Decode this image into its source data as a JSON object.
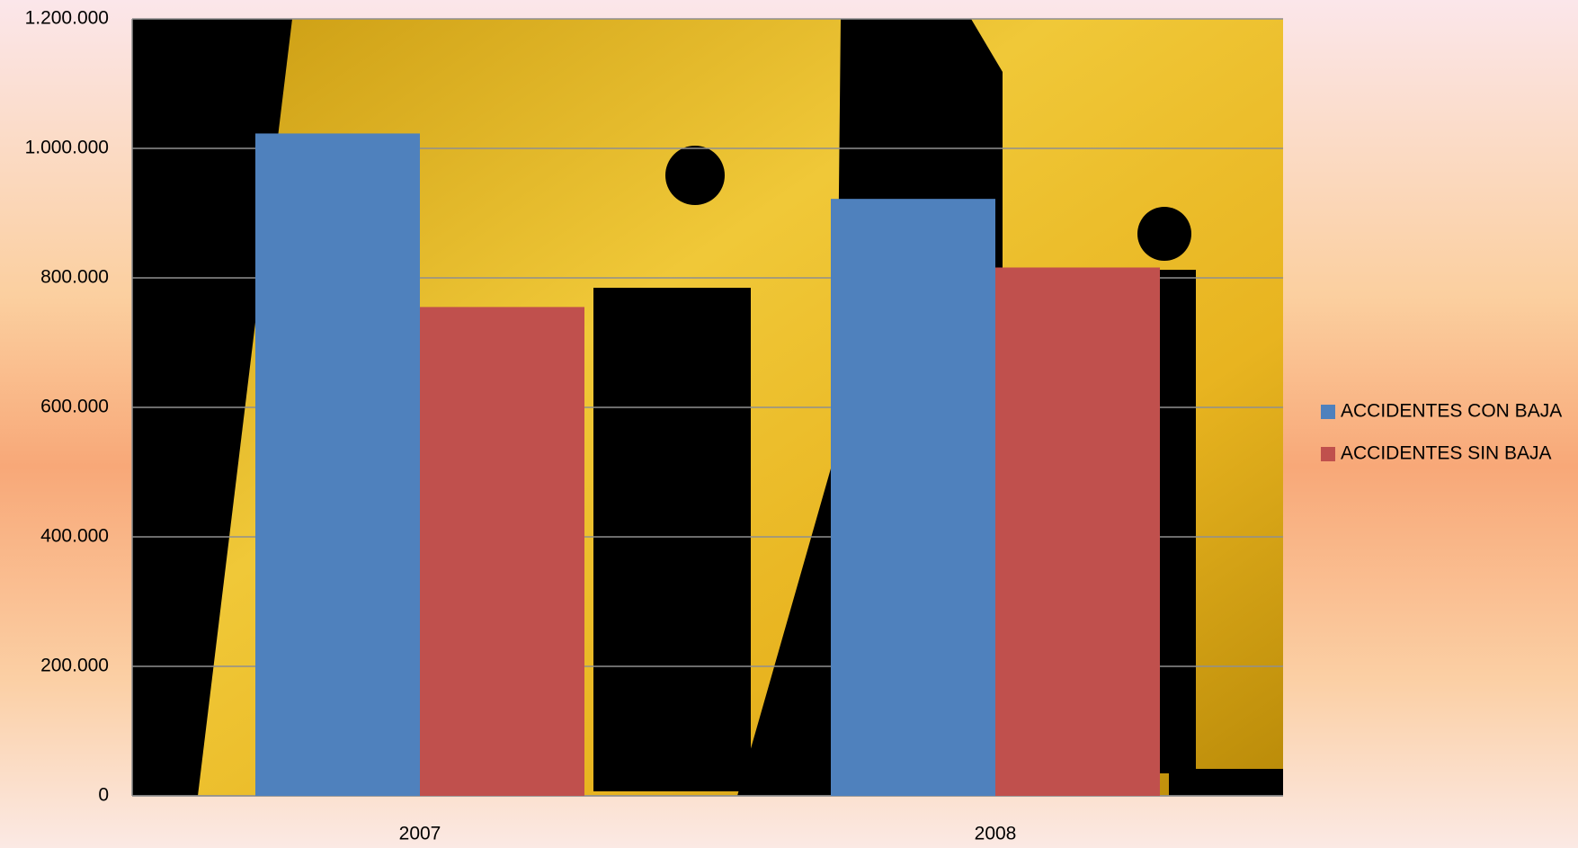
{
  "chart_data": {
    "type": "bar",
    "categories": [
      "2007",
      "2008"
    ],
    "series": [
      {
        "name": "ACCIDENTES CON BAJA",
        "color": "#4f81bd",
        "values": [
          1023000,
          922000
        ]
      },
      {
        "name": "ACCIDENTES SIN BAJA",
        "color": "#c0504d",
        "values": [
          755000,
          816000
        ]
      }
    ],
    "ylim": [
      0,
      1200000
    ],
    "yticks": [
      0,
      {
        "value": 200000,
        "label": "200.000"
      },
      {
        "value": 400000,
        "label": "400.000"
      },
      {
        "value": 600000,
        "label": "600.000"
      },
      {
        "value": 800000,
        "label": "800.000"
      },
      {
        "value": 1000000,
        "label": "1.000.000"
      },
      {
        "value": 1200000,
        "label": "1.200.000"
      }
    ],
    "grid": true,
    "legend": "right"
  }
}
